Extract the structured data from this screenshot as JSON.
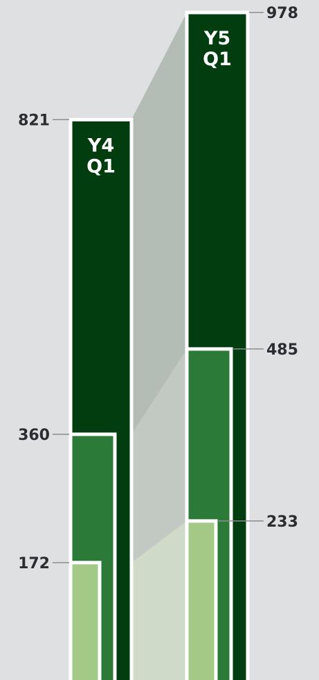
{
  "chart_data": {
    "type": "bar",
    "categories": [
      "Y4 Q1",
      "Y5 Q1"
    ],
    "category_labels": [
      [
        "Y4",
        "Q1"
      ],
      [
        "Y5",
        "Q1"
      ]
    ],
    "series": [
      {
        "values": [
          821,
          978
        ],
        "color": "#013d0e"
      },
      {
        "values": [
          360,
          485
        ],
        "color": "#2c7a37"
      },
      {
        "values": [
          172,
          233
        ],
        "color": "#a2c985"
      }
    ],
    "ylim": [
      0,
      978
    ],
    "grid": false,
    "colors": {
      "background": "#dfe0e2",
      "bar_outline": "#ffffff",
      "connector_top": "#b4bcb6",
      "connector_middle": "#c2c9c3",
      "connector_bottom": "#cfdac8",
      "leader_line": "#8a8d91",
      "label_text": "#2a2d32"
    }
  }
}
